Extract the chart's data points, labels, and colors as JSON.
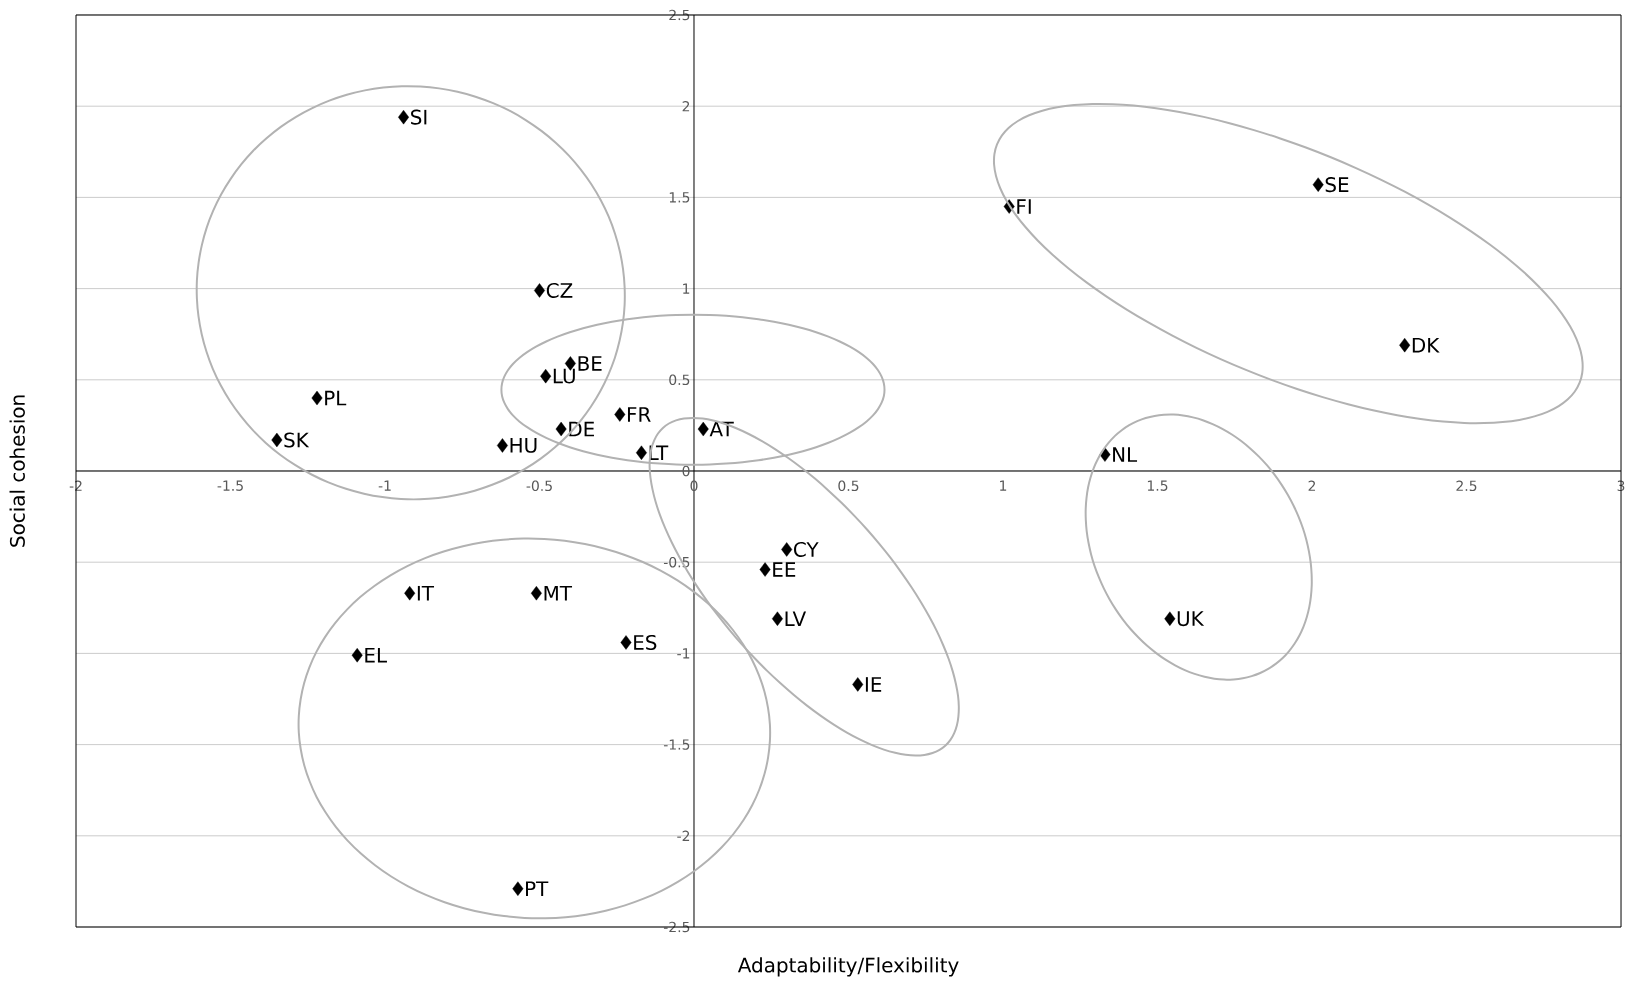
{
  "chart_data": {
    "type": "scatter",
    "xlabel": "Adaptability/Flexibility",
    "ylabel": "Social cohesion",
    "x": [
      -0.94,
      -0.5,
      -0.4,
      -0.48,
      -1.22,
      -1.35,
      -0.62,
      -0.43,
      -0.24,
      -0.17,
      0.03,
      1.02,
      2.02,
      2.3,
      1.33,
      1.54,
      0.3,
      0.23,
      0.27,
      0.53,
      -0.92,
      -0.51,
      -0.22,
      -1.09,
      -0.57
    ],
    "values": [
      1.94,
      0.99,
      0.59,
      0.52,
      0.4,
      0.17,
      0.14,
      0.23,
      0.31,
      0.1,
      0.23,
      1.45,
      1.57,
      0.69,
      0.09,
      -0.81,
      -0.43,
      -0.54,
      -0.81,
      -1.17,
      -0.67,
      -0.67,
      -0.94,
      -1.01,
      -2.29
    ],
    "color": "#000000",
    "marker": "diamond",
    "annotations": [
      {
        "text": "SI",
        "x": -0.94,
        "y": 1.94
      },
      {
        "text": "CZ",
        "x": -0.5,
        "y": 0.99
      },
      {
        "text": "BE",
        "x": -0.4,
        "y": 0.59
      },
      {
        "text": "LU",
        "x": -0.48,
        "y": 0.52
      },
      {
        "text": "PL",
        "x": -1.22,
        "y": 0.4
      },
      {
        "text": "SK",
        "x": -1.35,
        "y": 0.17
      },
      {
        "text": "HU",
        "x": -0.62,
        "y": 0.14
      },
      {
        "text": "DE",
        "x": -0.43,
        "y": 0.23
      },
      {
        "text": "FR",
        "x": -0.24,
        "y": 0.31
      },
      {
        "text": "LT",
        "x": -0.17,
        "y": 0.1
      },
      {
        "text": "AT",
        "x": 0.03,
        "y": 0.23
      },
      {
        "text": "FI",
        "x": 1.02,
        "y": 1.45
      },
      {
        "text": "SE",
        "x": 2.02,
        "y": 1.57
      },
      {
        "text": "DK",
        "x": 2.3,
        "y": 0.69
      },
      {
        "text": "NL",
        "x": 1.33,
        "y": 0.09
      },
      {
        "text": "UK",
        "x": 1.54,
        "y": -0.81
      },
      {
        "text": "CY",
        "x": 0.3,
        "y": -0.43
      },
      {
        "text": "EE",
        "x": 0.23,
        "y": -0.54
      },
      {
        "text": "LV",
        "x": 0.27,
        "y": -0.81
      },
      {
        "text": "IE",
        "x": 0.53,
        "y": -1.17
      },
      {
        "text": "IT",
        "x": -0.92,
        "y": -0.67
      },
      {
        "text": "MT",
        "x": -0.51,
        "y": -0.67
      },
      {
        "text": "ES",
        "x": -0.22,
        "y": -0.94
      },
      {
        "text": "EL",
        "x": -1.09,
        "y": -1.01
      },
      {
        "text": "PT",
        "x": -0.57,
        "y": -2.29
      }
    ],
    "xlim": [
      -2,
      3
    ],
    "ylim": [
      -2.5,
      2.5
    ],
    "xticks": [
      -2,
      -1.5,
      -1,
      -0.5,
      0,
      0.5,
      1,
      1.5,
      2,
      2.5,
      3
    ],
    "yticks": [
      -2.5,
      -2,
      -1.5,
      -1,
      -0.5,
      0,
      0.5,
      1,
      1.5,
      2,
      2.5
    ],
    "grid": "y"
  }
}
